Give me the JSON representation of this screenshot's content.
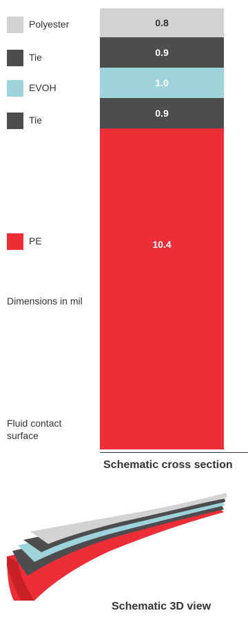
{
  "layers": [
    {
      "name": "Polyester",
      "thickness_mil": 0.8,
      "value_label": "0.8",
      "color": "#d1d2d4",
      "text_color": "#333333"
    },
    {
      "name": "Tie",
      "thickness_mil": 0.9,
      "value_label": "0.9",
      "color": "#4d4d4f",
      "text_color": "#ffffff"
    },
    {
      "name": "EVOH",
      "thickness_mil": 1.0,
      "value_label": "1.0",
      "color": "#9ed3dc",
      "text_color": "#ffffff"
    },
    {
      "name": "Tie",
      "thickness_mil": 0.9,
      "value_label": "0.9",
      "color": "#4d4d4f",
      "text_color": "#ffffff"
    },
    {
      "name": "PE",
      "thickness_mil": 10.4,
      "value_label": "10.4",
      "color": "#ed2e37",
      "text_color": "#ffffff"
    }
  ],
  "notes": {
    "dimensions": "Dimensions in mil",
    "fluid_contact_line1": "Fluid contact",
    "fluid_contact_line2": "surface"
  },
  "captions": {
    "cross_section": "Schematic cross section",
    "view_3d": "Schematic 3D view"
  }
}
